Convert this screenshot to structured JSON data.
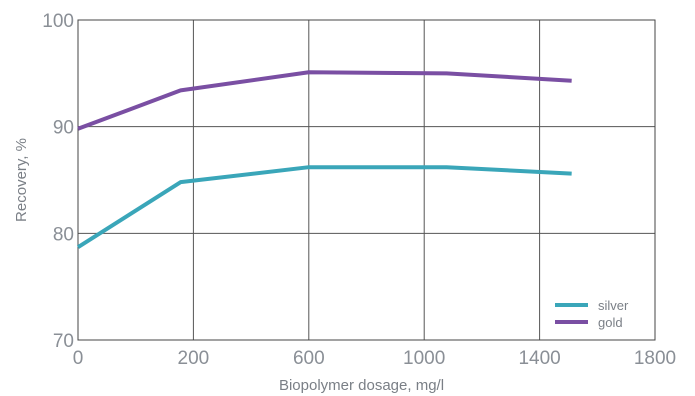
{
  "chart_data": {
    "type": "line",
    "xlabel": "Biopolymer dosage, mg/l",
    "ylabel": "Recovery, %",
    "xlim": [
      0,
      1800
    ],
    "ylim": [
      70,
      100
    ],
    "grid": true,
    "legend_placement": "bottom-right",
    "x_ticks": [
      "0",
      "200",
      "600",
      "1000",
      "1400",
      "1800"
    ],
    "y_ticks": [
      "70",
      "80",
      "90",
      "100"
    ],
    "series": [
      {
        "name": "silver",
        "color": "#3aa6b9",
        "points": [
          [
            0,
            78.7
          ],
          [
            320,
            84.8
          ],
          [
            720,
            86.2
          ],
          [
            1150,
            86.2
          ],
          [
            1540,
            85.6
          ]
        ]
      },
      {
        "name": "gold",
        "color": "#7a4fa3",
        "points": [
          [
            0,
            89.8
          ],
          [
            320,
            93.4
          ],
          [
            720,
            95.1
          ],
          [
            1150,
            95.0
          ],
          [
            1540,
            94.3
          ]
        ]
      }
    ]
  }
}
